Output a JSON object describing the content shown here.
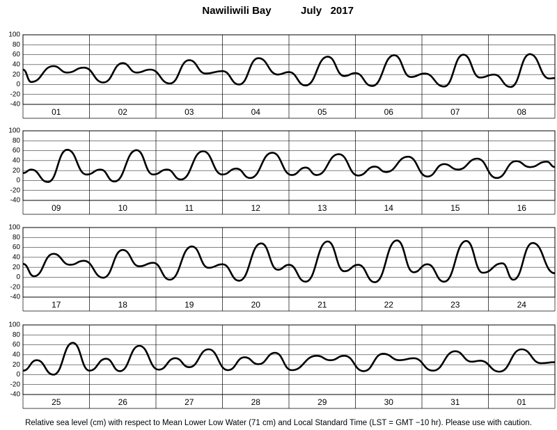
{
  "title": "Nawiliwili Bay",
  "date": "July   2017",
  "note": "Relative sea level (cm) with respect to Mean Lower Low Water (71 cm) and Local Standard Time (LST = GMT −10 hr). Please use with caution.",
  "chart_data": [
    {
      "type": "line",
      "categories": [
        "01",
        "02",
        "03",
        "04",
        "05",
        "06",
        "07",
        "08"
      ],
      "x": [
        0,
        3,
        11,
        16,
        22,
        29,
        36,
        41,
        46,
        53,
        60,
        66,
        72,
        78,
        85,
        92,
        96,
        102,
        110,
        116,
        120,
        126,
        134,
        140,
        145,
        152,
        159,
        165,
        170,
        176,
        183,
        190,
        192
      ],
      "values": [
        30,
        5,
        37,
        24,
        34,
        4,
        43,
        24,
        30,
        2,
        49,
        22,
        27,
        0,
        53,
        20,
        25,
        -2,
        56,
        17,
        23,
        -3,
        59,
        15,
        22,
        -4,
        60,
        14,
        20,
        -5,
        61,
        12,
        13
      ],
      "color": "#000000",
      "xlim": [
        0,
        192
      ],
      "ylim": [
        -40,
        100
      ],
      "yticks": [
        -40,
        -20,
        0,
        20,
        40,
        60,
        80,
        100
      ],
      "grid": true
    },
    {
      "type": "line",
      "categories": [
        "09",
        "10",
        "11",
        "12",
        "13",
        "14",
        "15",
        "16"
      ],
      "x": [
        0,
        3,
        9,
        16,
        23,
        28,
        33,
        41,
        47,
        52,
        57,
        65,
        72,
        77,
        82,
        90,
        97,
        102,
        106,
        114,
        121,
        127,
        131,
        139,
        146,
        152,
        157,
        164,
        171,
        178,
        183,
        189,
        192
      ],
      "values": [
        15,
        22,
        -3,
        62,
        12,
        22,
        -2,
        61,
        12,
        22,
        2,
        59,
        12,
        24,
        5,
        56,
        11,
        26,
        11,
        53,
        10,
        28,
        17,
        48,
        8,
        33,
        22,
        44,
        5,
        39,
        27,
        38,
        27
      ],
      "color": "#000000",
      "xlim": [
        0,
        192
      ],
      "ylim": [
        -40,
        100
      ],
      "yticks": [
        -40,
        -20,
        0,
        20,
        40,
        60,
        80,
        100
      ],
      "grid": true
    },
    {
      "type": "line",
      "categories": [
        "17",
        "18",
        "19",
        "20",
        "21",
        "22",
        "23",
        "24"
      ],
      "x": [
        0,
        4,
        11,
        17,
        22,
        29,
        36,
        42,
        47,
        53,
        61,
        67,
        72,
        78,
        86,
        92,
        96,
        102,
        110,
        116,
        121,
        127,
        135,
        141,
        146,
        152,
        160,
        166,
        173,
        177,
        184,
        192
      ],
      "values": [
        27,
        2,
        47,
        25,
        33,
        -1,
        55,
        22,
        29,
        -5,
        62,
        19,
        26,
        -7,
        68,
        15,
        25,
        -9,
        72,
        12,
        25,
        -10,
        74,
        10,
        26,
        -9,
        73,
        9,
        28,
        -5,
        69,
        8
      ],
      "color": "#000000",
      "xlim": [
        0,
        192
      ],
      "ylim": [
        -40,
        100
      ],
      "yticks": [
        -40,
        -20,
        0,
        20,
        40,
        60,
        80,
        100
      ],
      "grid": true
    },
    {
      "type": "line",
      "categories": [
        "25",
        "26",
        "27",
        "28",
        "29",
        "30",
        "31",
        "01"
      ],
      "x": [
        0,
        5,
        11,
        18,
        24,
        30,
        35,
        42,
        49,
        55,
        60,
        67,
        74,
        80,
        85,
        91,
        97,
        106,
        111,
        116,
        123,
        130,
        136,
        141,
        148,
        156,
        162,
        165,
        172,
        180,
        187,
        192
      ],
      "values": [
        8,
        29,
        0,
        64,
        8,
        32,
        7,
        58,
        10,
        33,
        15,
        51,
        9,
        35,
        21,
        44,
        9,
        38,
        29,
        38,
        7,
        42,
        29,
        33,
        8,
        47,
        26,
        28,
        6,
        51,
        23,
        25
      ],
      "color": "#000000",
      "xlim": [
        0,
        192
      ],
      "ylim": [
        -40,
        100
      ],
      "yticks": [
        -40,
        -20,
        0,
        20,
        40,
        60,
        80,
        100
      ],
      "grid": true
    }
  ]
}
